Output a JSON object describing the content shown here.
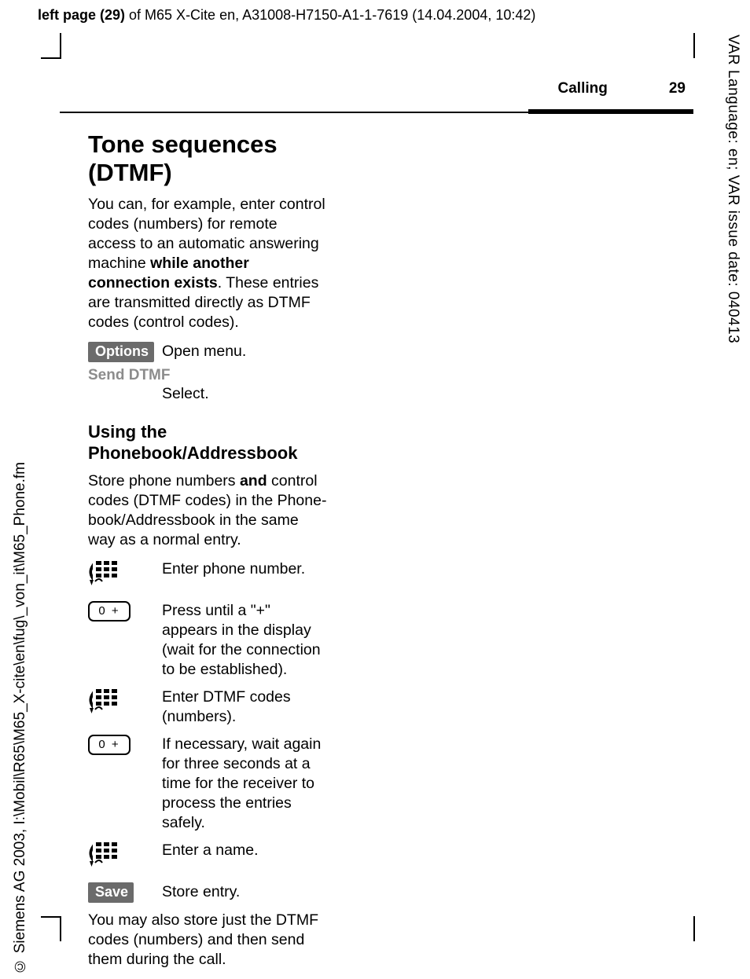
{
  "top_header": {
    "bold_part": "left page (29)",
    "rest": " of M65 X-Cite en, A31008-H7150-A1-1-7619 (14.04.2004, 10:42)"
  },
  "running_head": {
    "section": "Calling",
    "page": "29"
  },
  "margin_text": {
    "right": "VAR Language: en; VAR issue date: 040413",
    "left": "© Siemens AG 2003, I:\\Mobil\\R65\\M65_X-cite\\en\\fug\\_von_it\\M65_Phone.fm"
  },
  "content": {
    "h1": "Tone sequences (DTMF)",
    "intro_before_bold": "You can, for example, enter control codes (numbers) for remote access to an automatic answering machine ",
    "intro_bold": "while another connection exists",
    "intro_after_bold": ". These entries are transmitted directly as DTMF codes (control codes).",
    "options_label": "Options",
    "options_desc": "Open menu.",
    "send_dtmf_label": "Send DTMF",
    "send_dtmf_desc": "Select.",
    "h2": "Using the Phonebook/Address­book",
    "store_before_bold": "Store phone numbers ",
    "store_bold": "and",
    "store_after_bold": " control codes (DTMF codes) in the Phone­book/Addressbook in the same way as a normal entry.",
    "steps": [
      {
        "icon": "keypad",
        "text": "Enter phone number."
      },
      {
        "icon": "key0",
        "text": "Press until a \"+\" appears in the display (wait for the connection to be estab­lished)."
      },
      {
        "icon": "keypad",
        "text": "Enter DTMF codes (numbers)."
      },
      {
        "icon": "key0",
        "text": "If necessary, wait again for three seconds at a time for the receiver to process the entries safely."
      },
      {
        "icon": "keypad",
        "text": "Enter a name."
      },
      {
        "icon": "save",
        "text": "Store entry."
      }
    ],
    "save_label": "Save",
    "key0_label": "0 +",
    "footer_para": "You may also store just the DTMF codes (numbers) and then send them during the call."
  },
  "colors": {
    "softkey_bg": "#6b6b6b",
    "softkey_fg": "#ffffff",
    "grey_label": "#8c8c8c",
    "text": "#000000",
    "background": "#ffffff"
  }
}
